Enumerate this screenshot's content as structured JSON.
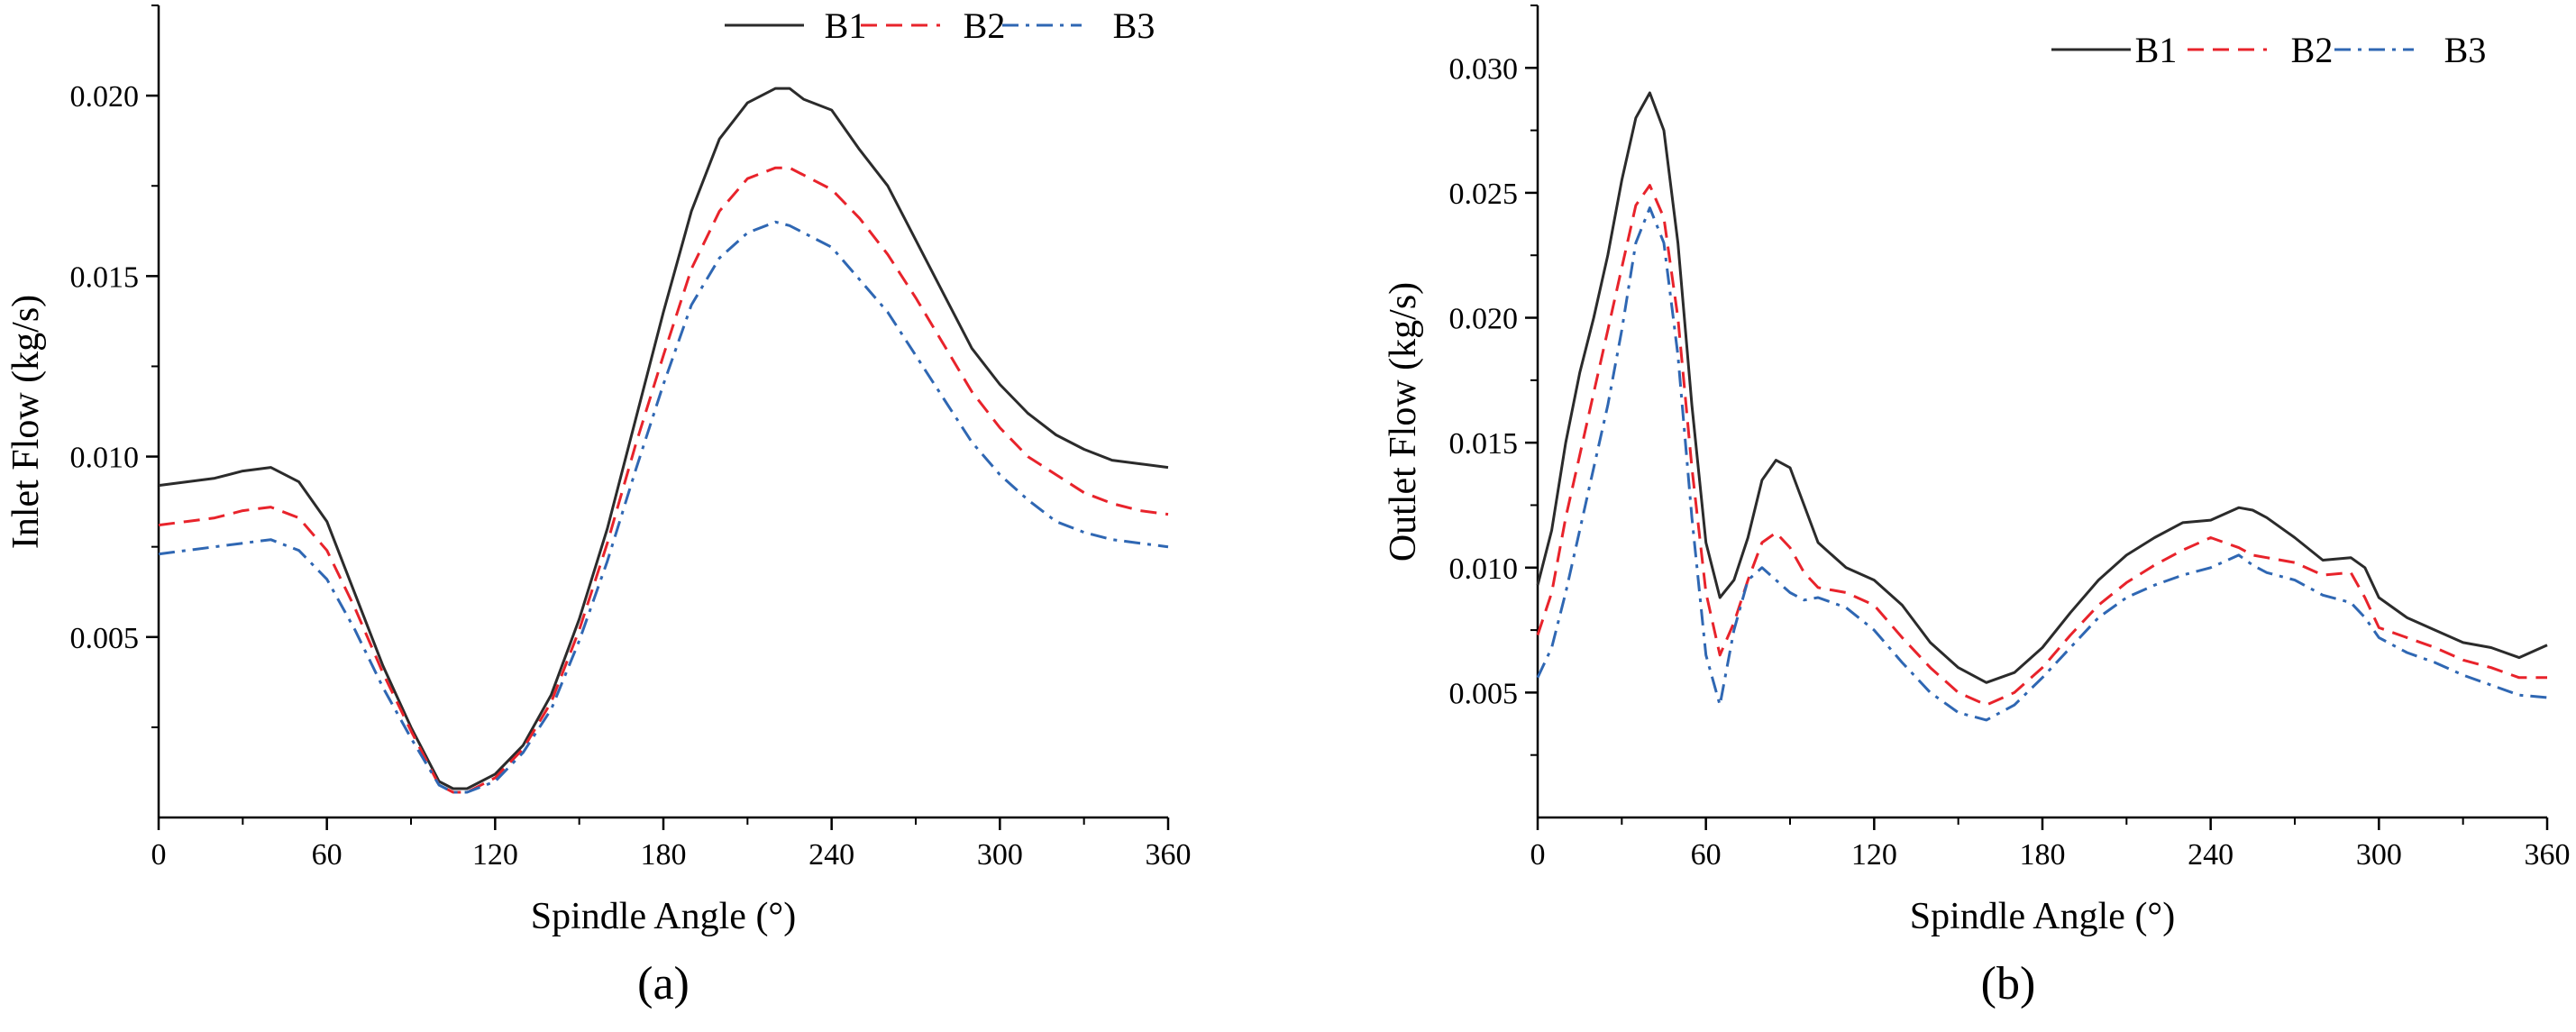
{
  "chart_data": [
    {
      "type": "line",
      "caption": "(a)",
      "xlabel": "Spindle Angle (°)",
      "ylabel": "Inlet Flow (kg/s)",
      "xlim": [
        0,
        360
      ],
      "ylim": [
        0,
        0.0225
      ],
      "x_ticks": [
        0,
        60,
        120,
        180,
        240,
        300,
        360
      ],
      "x_tick_labels": [
        "0",
        "60",
        "120",
        "180",
        "240",
        "300",
        "360"
      ],
      "y_ticks": [
        0.005,
        0.01,
        0.015,
        0.02
      ],
      "y_tick_labels": [
        "0.005",
        "0.010",
        "0.015",
        "0.020"
      ],
      "legend_position": "top-right",
      "x": [
        0,
        10,
        20,
        30,
        40,
        50,
        60,
        70,
        80,
        90,
        100,
        105,
        110,
        120,
        130,
        140,
        150,
        160,
        170,
        180,
        190,
        200,
        210,
        220,
        225,
        230,
        240,
        250,
        260,
        270,
        280,
        290,
        300,
        310,
        320,
        330,
        340,
        350,
        360
      ],
      "series": [
        {
          "name": "B1",
          "color": "#2b2b2b",
          "dash": "solid",
          "values": [
            0.0092,
            0.0093,
            0.0094,
            0.0096,
            0.0097,
            0.0093,
            0.0082,
            0.0062,
            0.0042,
            0.0025,
            0.001,
            0.0008,
            0.0008,
            0.0012,
            0.002,
            0.0034,
            0.0055,
            0.008,
            0.011,
            0.014,
            0.0168,
            0.0188,
            0.0198,
            0.0202,
            0.0202,
            0.0199,
            0.0196,
            0.0185,
            0.0175,
            0.016,
            0.0145,
            0.013,
            0.012,
            0.0112,
            0.0106,
            0.0102,
            0.0099,
            0.0098,
            0.0097
          ]
        },
        {
          "name": "B2",
          "color": "#e8232b",
          "dash": "dash",
          "values": [
            0.0081,
            0.0082,
            0.0083,
            0.0085,
            0.0086,
            0.0083,
            0.0074,
            0.0058,
            0.004,
            0.0024,
            0.0009,
            0.0007,
            0.0007,
            0.0011,
            0.0019,
            0.0032,
            0.0052,
            0.0076,
            0.0103,
            0.0128,
            0.0152,
            0.0168,
            0.0177,
            0.018,
            0.018,
            0.0178,
            0.0174,
            0.0166,
            0.0156,
            0.0144,
            0.0131,
            0.0118,
            0.0108,
            0.01,
            0.0095,
            0.009,
            0.0087,
            0.0085,
            0.0084
          ]
        },
        {
          "name": "B3",
          "color": "#2f67b3",
          "dash": "dashdot",
          "values": [
            0.0073,
            0.0074,
            0.0075,
            0.0076,
            0.0077,
            0.0074,
            0.0066,
            0.0052,
            0.0036,
            0.0022,
            0.0009,
            0.0007,
            0.0007,
            0.001,
            0.0018,
            0.003,
            0.0049,
            0.0071,
            0.0096,
            0.012,
            0.0142,
            0.0155,
            0.0162,
            0.0165,
            0.0164,
            0.0162,
            0.0158,
            0.0149,
            0.014,
            0.0128,
            0.0116,
            0.0104,
            0.0095,
            0.0088,
            0.0082,
            0.0079,
            0.0077,
            0.0076,
            0.0075
          ]
        }
      ]
    },
    {
      "type": "line",
      "caption": "(b)",
      "xlabel": "Spindle Angle (°)",
      "ylabel": "Outlet Flow (kg/s)",
      "xlim": [
        0,
        360
      ],
      "ylim": [
        0,
        0.0325
      ],
      "x_ticks": [
        0,
        60,
        120,
        180,
        240,
        300,
        360
      ],
      "x_tick_labels": [
        "0",
        "60",
        "120",
        "180",
        "240",
        "300",
        "360"
      ],
      "y_ticks": [
        0.005,
        0.01,
        0.015,
        0.02,
        0.025,
        0.03
      ],
      "y_tick_labels": [
        "0.005",
        "0.010",
        "0.015",
        "0.020",
        "0.025",
        "0.030"
      ],
      "legend_position": "top-right",
      "x": [
        0,
        5,
        10,
        15,
        20,
        25,
        30,
        35,
        40,
        45,
        50,
        55,
        60,
        65,
        70,
        75,
        80,
        85,
        90,
        95,
        100,
        110,
        120,
        130,
        140,
        150,
        160,
        170,
        180,
        190,
        200,
        210,
        220,
        230,
        240,
        250,
        255,
        260,
        270,
        280,
        290,
        295,
        300,
        310,
        320,
        330,
        340,
        350,
        360
      ],
      "series": [
        {
          "name": "B1",
          "color": "#2b2b2b",
          "dash": "solid",
          "values": [
            0.0093,
            0.0115,
            0.015,
            0.0178,
            0.02,
            0.0225,
            0.0255,
            0.028,
            0.029,
            0.0275,
            0.023,
            0.0165,
            0.011,
            0.0088,
            0.0095,
            0.0112,
            0.0135,
            0.0143,
            0.014,
            0.0125,
            0.011,
            0.01,
            0.0095,
            0.0085,
            0.007,
            0.006,
            0.0054,
            0.0058,
            0.0068,
            0.0082,
            0.0095,
            0.0105,
            0.0112,
            0.0118,
            0.0119,
            0.0124,
            0.0123,
            0.012,
            0.0112,
            0.0103,
            0.0104,
            0.01,
            0.0088,
            0.008,
            0.0075,
            0.007,
            0.0068,
            0.0064,
            0.0069
          ]
        },
        {
          "name": "B2",
          "color": "#e8232b",
          "dash": "dash",
          "values": [
            0.0073,
            0.009,
            0.012,
            0.0145,
            0.017,
            0.0195,
            0.022,
            0.0245,
            0.0253,
            0.024,
            0.02,
            0.014,
            0.009,
            0.0065,
            0.0078,
            0.0095,
            0.011,
            0.0114,
            0.0108,
            0.0098,
            0.0092,
            0.009,
            0.0085,
            0.0072,
            0.006,
            0.005,
            0.0045,
            0.005,
            0.006,
            0.0073,
            0.0085,
            0.0094,
            0.0101,
            0.0107,
            0.0112,
            0.0108,
            0.0105,
            0.0104,
            0.0102,
            0.0097,
            0.0098,
            0.0088,
            0.0076,
            0.0072,
            0.0068,
            0.0063,
            0.006,
            0.0056,
            0.0056
          ]
        },
        {
          "name": "B3",
          "color": "#2f67b3",
          "dash": "dashdot",
          "values": [
            0.0056,
            0.0068,
            0.009,
            0.0115,
            0.014,
            0.0165,
            0.0195,
            0.023,
            0.0244,
            0.023,
            0.0185,
            0.012,
            0.0065,
            0.0045,
            0.0075,
            0.0095,
            0.01,
            0.0095,
            0.009,
            0.0087,
            0.0088,
            0.0084,
            0.0075,
            0.0062,
            0.005,
            0.0042,
            0.0039,
            0.0045,
            0.0056,
            0.0068,
            0.008,
            0.0088,
            0.0093,
            0.0097,
            0.01,
            0.0105,
            0.0101,
            0.0098,
            0.0095,
            0.0089,
            0.0086,
            0.008,
            0.0072,
            0.0066,
            0.0062,
            0.0057,
            0.0053,
            0.0049,
            0.0048
          ]
        }
      ]
    }
  ]
}
